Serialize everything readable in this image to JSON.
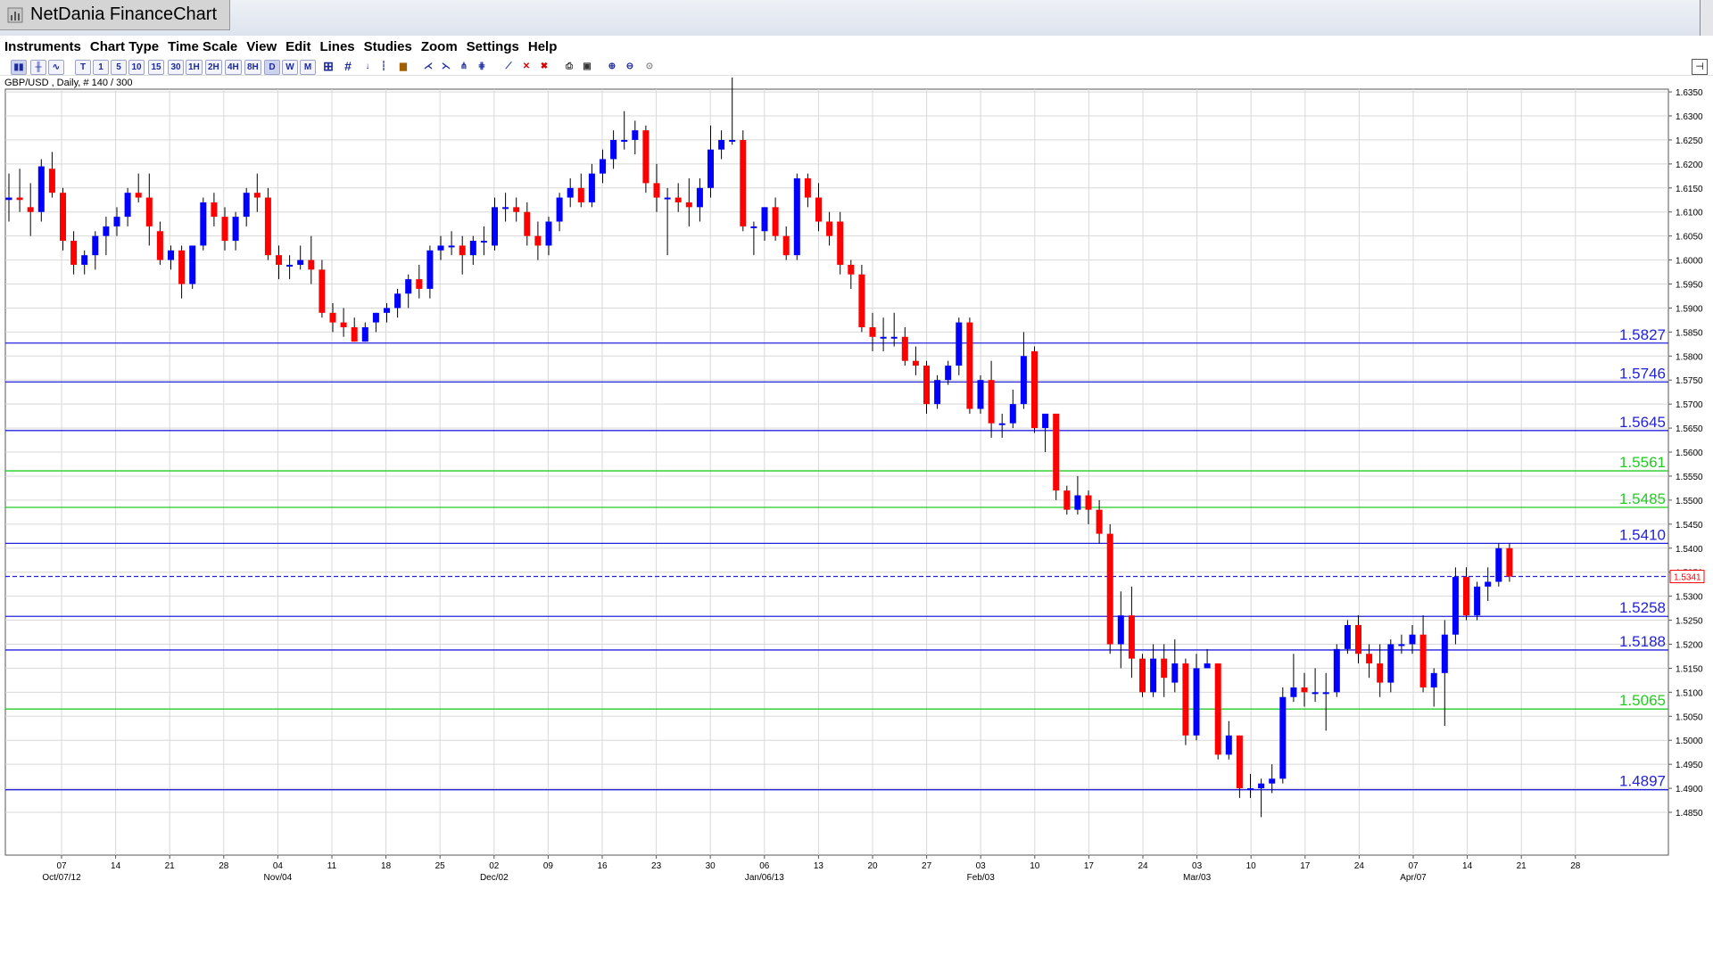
{
  "window": {
    "title": "NetDania FinanceChart"
  },
  "menu": [
    "Instruments",
    "Chart Type",
    "Time Scale",
    "View",
    "Edit",
    "Lines",
    "Studies",
    "Zoom",
    "Settings",
    "Help"
  ],
  "toolbar": {
    "timeframes": [
      "T",
      "1",
      "5",
      "10",
      "15",
      "30",
      "1H",
      "2H",
      "4H",
      "8H",
      "D",
      "W",
      "M"
    ],
    "selected": "D"
  },
  "instrument_label": "GBP/USD , Daily, # 140 / 300",
  "colors": {
    "up": "#0000ff",
    "down": "#ff0000",
    "wick": "#000000",
    "hline_blue": "#2222dd",
    "hline_green": "#22cc22",
    "grid": "#d8d8d8",
    "price_marker": "#ff0000"
  },
  "chart_data": {
    "type": "candlestick",
    "instrument": "GBP/USD",
    "timeframe": "Daily",
    "ylim": [
      1.482,
      1.64
    ],
    "y_ticks": [
      "1.6350",
      "1.6300",
      "1.6250",
      "1.6200",
      "1.6150",
      "1.6100",
      "1.6050",
      "1.6000",
      "1.5950",
      "1.5900",
      "1.5850",
      "1.5800",
      "1.5750",
      "1.5700",
      "1.5650",
      "1.5600",
      "1.5550",
      "1.5500",
      "1.5450",
      "1.5400",
      "1.5350",
      "1.5300",
      "1.5250",
      "1.5200",
      "1.5150",
      "1.5100",
      "1.5050",
      "1.5000",
      "1.4950",
      "1.4900",
      "1.4850"
    ],
    "x_week_labels": [
      "07",
      "14",
      "21",
      "28",
      "04",
      "11",
      "18",
      "25",
      "02",
      "09",
      "16",
      "23",
      "30",
      "06",
      "13",
      "20",
      "27",
      "03",
      "10",
      "17",
      "24",
      "03",
      "10",
      "17",
      "24",
      "07",
      "14",
      "21",
      "28"
    ],
    "x_month_labels": [
      "Oct/07/12",
      "Nov/04",
      "Dec/02",
      "Jan/06/13",
      "Feb/03",
      "Mar/03",
      "Apr/07"
    ],
    "month_label_week_index": [
      0,
      4,
      8,
      13,
      17,
      21,
      25
    ],
    "horizontal_lines": [
      {
        "value": 1.5827,
        "label": "1.5827",
        "color": "blue"
      },
      {
        "value": 1.5746,
        "label": "1.5746",
        "color": "blue"
      },
      {
        "value": 1.5645,
        "label": "1.5645",
        "color": "blue"
      },
      {
        "value": 1.5561,
        "label": "1.5561",
        "color": "green"
      },
      {
        "value": 1.5485,
        "label": "1.5485",
        "color": "green"
      },
      {
        "value": 1.541,
        "label": "1.5410",
        "color": "blue"
      },
      {
        "value": 1.5258,
        "label": "1.5258",
        "color": "blue"
      },
      {
        "value": 1.5188,
        "label": "1.5188",
        "color": "blue"
      },
      {
        "value": 1.5065,
        "label": "1.5065",
        "color": "green"
      },
      {
        "value": 1.4897,
        "label": "1.4897",
        "color": "blue"
      }
    ],
    "last_price": {
      "value": 1.5341,
      "label": "1.5341"
    },
    "candles": [
      [
        1.6125,
        1.618,
        1.608,
        1.613
      ],
      [
        1.613,
        1.619,
        1.61,
        1.6125
      ],
      [
        1.611,
        1.616,
        1.605,
        1.61
      ],
      [
        1.61,
        1.621,
        1.608,
        1.6195
      ],
      [
        1.619,
        1.6225,
        1.613,
        1.614
      ],
      [
        1.614,
        1.615,
        1.602,
        1.604
      ],
      [
        1.604,
        1.606,
        1.597,
        1.599
      ],
      [
        1.599,
        1.602,
        1.597,
        1.601
      ],
      [
        1.601,
        1.606,
        1.598,
        1.605
      ],
      [
        1.605,
        1.609,
        1.601,
        1.607
      ],
      [
        1.607,
        1.611,
        1.605,
        1.609
      ],
      [
        1.609,
        1.615,
        1.607,
        1.614
      ],
      [
        1.614,
        1.618,
        1.612,
        1.613
      ],
      [
        1.613,
        1.618,
        1.603,
        1.607
      ],
      [
        1.606,
        1.608,
        1.599,
        1.6
      ],
      [
        1.6,
        1.603,
        1.598,
        1.602
      ],
      [
        1.602,
        1.603,
        1.592,
        1.595
      ],
      [
        1.595,
        1.603,
        1.594,
        1.603
      ],
      [
        1.603,
        1.613,
        1.602,
        1.612
      ],
      [
        1.612,
        1.614,
        1.607,
        1.609
      ],
      [
        1.609,
        1.611,
        1.602,
        1.604
      ],
      [
        1.604,
        1.61,
        1.602,
        1.609
      ],
      [
        1.609,
        1.615,
        1.607,
        1.614
      ],
      [
        1.614,
        1.618,
        1.61,
        1.613
      ],
      [
        1.613,
        1.615,
        1.6,
        1.601
      ],
      [
        1.601,
        1.603,
        1.596,
        1.599
      ],
      [
        1.599,
        1.601,
        1.596,
        1.599
      ],
      [
        1.599,
        1.603,
        1.598,
        1.6
      ],
      [
        1.6,
        1.605,
        1.595,
        1.598
      ],
      [
        1.598,
        1.6,
        1.588,
        1.589
      ],
      [
        1.589,
        1.591,
        1.585,
        1.587
      ],
      [
        1.587,
        1.59,
        1.584,
        1.586
      ],
      [
        1.586,
        1.588,
        1.583,
        1.583
      ],
      [
        1.583,
        1.587,
        1.583,
        1.586
      ],
      [
        1.587,
        1.589,
        1.585,
        1.589
      ],
      [
        1.589,
        1.591,
        1.587,
        1.59
      ],
      [
        1.59,
        1.594,
        1.588,
        1.593
      ],
      [
        1.593,
        1.597,
        1.59,
        1.596
      ],
      [
        1.596,
        1.599,
        1.592,
        1.594
      ],
      [
        1.594,
        1.603,
        1.592,
        1.602
      ],
      [
        1.602,
        1.605,
        1.6,
        1.603
      ],
      [
        1.603,
        1.606,
        1.601,
        1.603
      ],
      [
        1.603,
        1.605,
        1.597,
        1.601
      ],
      [
        1.601,
        1.605,
        1.599,
        1.604
      ],
      [
        1.604,
        1.607,
        1.601,
        1.604
      ],
      [
        1.603,
        1.613,
        1.602,
        1.611
      ],
      [
        1.611,
        1.614,
        1.608,
        1.611
      ],
      [
        1.611,
        1.613,
        1.608,
        1.61
      ],
      [
        1.61,
        1.612,
        1.603,
        1.605
      ],
      [
        1.605,
        1.608,
        1.6,
        1.603
      ],
      [
        1.603,
        1.609,
        1.601,
        1.608
      ],
      [
        1.608,
        1.614,
        1.606,
        1.613
      ],
      [
        1.613,
        1.617,
        1.611,
        1.615
      ],
      [
        1.615,
        1.618,
        1.611,
        1.612
      ],
      [
        1.612,
        1.62,
        1.611,
        1.618
      ],
      [
        1.618,
        1.623,
        1.616,
        1.621
      ],
      [
        1.621,
        1.627,
        1.619,
        1.625
      ],
      [
        1.625,
        1.631,
        1.623,
        1.625
      ],
      [
        1.625,
        1.629,
        1.622,
        1.627
      ],
      [
        1.627,
        1.628,
        1.614,
        1.616
      ],
      [
        1.616,
        1.62,
        1.61,
        1.613
      ],
      [
        1.613,
        1.615,
        1.601,
        1.613
      ],
      [
        1.613,
        1.616,
        1.61,
        1.612
      ],
      [
        1.612,
        1.617,
        1.607,
        1.611
      ],
      [
        1.611,
        1.617,
        1.608,
        1.615
      ],
      [
        1.615,
        1.628,
        1.613,
        1.623
      ],
      [
        1.623,
        1.627,
        1.621,
        1.625
      ],
      [
        1.625,
        1.638,
        1.624,
        1.625
      ],
      [
        1.625,
        1.627,
        1.606,
        1.607
      ],
      [
        1.607,
        1.608,
        1.601,
        1.607
      ],
      [
        1.606,
        1.611,
        1.604,
        1.611
      ],
      [
        1.611,
        1.613,
        1.604,
        1.605
      ],
      [
        1.605,
        1.607,
        1.6,
        1.601
      ],
      [
        1.601,
        1.618,
        1.6,
        1.617
      ],
      [
        1.617,
        1.618,
        1.611,
        1.613
      ],
      [
        1.613,
        1.616,
        1.606,
        1.608
      ],
      [
        1.608,
        1.61,
        1.603,
        1.605
      ],
      [
        1.608,
        1.61,
        1.597,
        1.599
      ],
      [
        1.599,
        1.6,
        1.594,
        1.597
      ],
      [
        1.597,
        1.599,
        1.585,
        1.586
      ],
      [
        1.586,
        1.589,
        1.581,
        1.584
      ],
      [
        1.584,
        1.588,
        1.581,
        1.584
      ],
      [
        1.584,
        1.589,
        1.582,
        1.584
      ],
      [
        1.584,
        1.586,
        1.578,
        1.579
      ],
      [
        1.579,
        1.582,
        1.576,
        1.578
      ],
      [
        1.578,
        1.579,
        1.568,
        1.57
      ],
      [
        1.57,
        1.576,
        1.569,
        1.575
      ],
      [
        1.575,
        1.579,
        1.574,
        1.578
      ],
      [
        1.578,
        1.588,
        1.576,
        1.587
      ],
      [
        1.587,
        1.588,
        1.568,
        1.569
      ],
      [
        1.569,
        1.576,
        1.568,
        1.575
      ],
      [
        1.575,
        1.579,
        1.563,
        1.566
      ],
      [
        1.566,
        1.568,
        1.563,
        1.566
      ],
      [
        1.566,
        1.573,
        1.565,
        1.57
      ],
      [
        1.57,
        1.585,
        1.569,
        1.58
      ],
      [
        1.581,
        1.582,
        1.564,
        1.565
      ],
      [
        1.565,
        1.568,
        1.56,
        1.568
      ],
      [
        1.568,
        1.568,
        1.55,
        1.552
      ],
      [
        1.552,
        1.553,
        1.547,
        1.548
      ],
      [
        1.548,
        1.555,
        1.547,
        1.551
      ],
      [
        1.551,
        1.552,
        1.545,
        1.548
      ],
      [
        1.548,
        1.55,
        1.541,
        1.543
      ],
      [
        1.543,
        1.545,
        1.518,
        1.52
      ],
      [
        1.52,
        1.531,
        1.515,
        1.526
      ],
      [
        1.526,
        1.532,
        1.513,
        1.517
      ],
      [
        1.517,
        1.518,
        1.509,
        1.51
      ],
      [
        1.51,
        1.52,
        1.509,
        1.517
      ],
      [
        1.517,
        1.52,
        1.509,
        1.513
      ],
      [
        1.512,
        1.521,
        1.51,
        1.516
      ],
      [
        1.516,
        1.517,
        1.499,
        1.501
      ],
      [
        1.501,
        1.518,
        1.5,
        1.515
      ],
      [
        1.515,
        1.519,
        1.515,
        1.516
      ],
      [
        1.516,
        1.516,
        1.496,
        1.497
      ],
      [
        1.497,
        1.504,
        1.496,
        1.501
      ],
      [
        1.501,
        1.501,
        1.488,
        1.49
      ],
      [
        1.49,
        1.493,
        1.488,
        1.49
      ],
      [
        1.49,
        1.492,
        1.484,
        1.491
      ],
      [
        1.491,
        1.495,
        1.489,
        1.492
      ],
      [
        1.492,
        1.511,
        1.491,
        1.509
      ],
      [
        1.509,
        1.518,
        1.508,
        1.511
      ],
      [
        1.511,
        1.514,
        1.507,
        1.51
      ],
      [
        1.51,
        1.515,
        1.508,
        1.51
      ],
      [
        1.51,
        1.514,
        1.502,
        1.51
      ],
      [
        1.51,
        1.52,
        1.509,
        1.519
      ],
      [
        1.519,
        1.525,
        1.518,
        1.524
      ],
      [
        1.524,
        1.526,
        1.516,
        1.518
      ],
      [
        1.518,
        1.52,
        1.513,
        1.516
      ],
      [
        1.516,
        1.52,
        1.509,
        1.512
      ],
      [
        1.512,
        1.521,
        1.51,
        1.52
      ],
      [
        1.52,
        1.522,
        1.518,
        1.52
      ],
      [
        1.52,
        1.524,
        1.518,
        1.522
      ],
      [
        1.522,
        1.526,
        1.51,
        1.511
      ],
      [
        1.511,
        1.515,
        1.507,
        1.514
      ],
      [
        1.514,
        1.525,
        1.503,
        1.522
      ],
      [
        1.522,
        1.536,
        1.52,
        1.534
      ],
      [
        1.534,
        1.536,
        1.525,
        1.526
      ],
      [
        1.526,
        1.533,
        1.525,
        1.532
      ],
      [
        1.532,
        1.536,
        1.529,
        1.533
      ],
      [
        1.533,
        1.541,
        1.532,
        1.54
      ],
      [
        1.54,
        1.541,
        1.533,
        1.5341
      ]
    ]
  }
}
